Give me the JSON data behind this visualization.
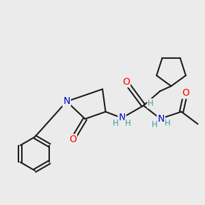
{
  "bg_color": "#ebebeb",
  "atom_colors": {
    "C": "#000000",
    "N": "#0000cc",
    "O": "#ff0000",
    "H": "#3a9e9e"
  },
  "bond_color": "#1a1a1a",
  "bond_width": 1.5,
  "font_size_atom": 10,
  "font_size_H": 8.5
}
